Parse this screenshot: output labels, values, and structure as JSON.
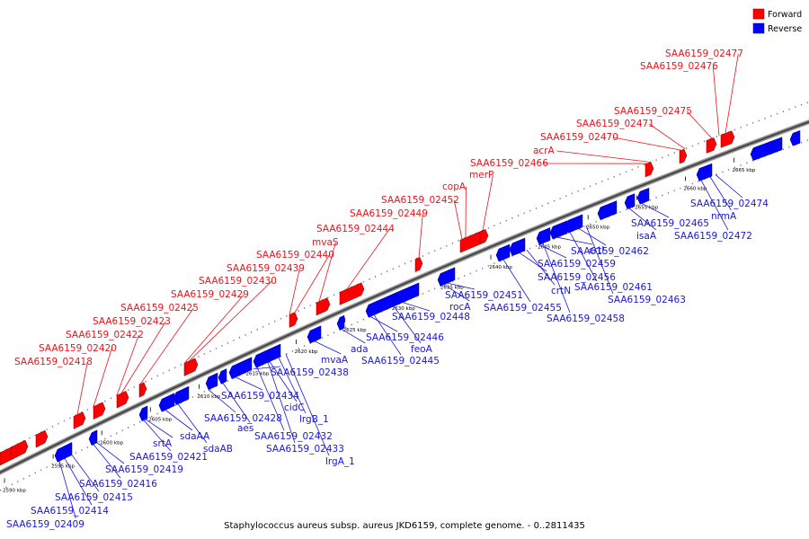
{
  "legend": {
    "forward_label": "Forward",
    "reverse_label": "Reverse",
    "forward_color": "#ff0000",
    "reverse_color": "#0000ff"
  },
  "caption": "Staphylococcus aureus subsp. aureus JKD6159, complete genome. - 0..2811435",
  "scale_kbp": [
    2590,
    2595,
    2600,
    2605,
    2610,
    2615,
    2620,
    2625,
    2630,
    2635,
    2640,
    2645,
    2650,
    2655,
    2660,
    2665
  ],
  "forward_genes": [
    "SAA6159_02418",
    "SAA6159_02420",
    "SAA6159_02422",
    "SAA6159_02423",
    "SAA6159_02425",
    "SAA6159_02429",
    "SAA6159_02430",
    "SAA6159_02439",
    "SAA6159_02440",
    "mvaS",
    "SAA6159_02444",
    "SAA6159_02449",
    "SAA6159_02452",
    "copA",
    "merP",
    "SAA6159_02466",
    "acrA",
    "SAA6159_02470",
    "SAA6159_02471",
    "SAA6159_02475",
    "SAA6159_02476",
    "SAA6159_02477"
  ],
  "reverse_genes": [
    "SAA6159_02409",
    "SAA6159_02414",
    "SAA6159_02415",
    "SAA6159_02416",
    "SAA6159_02419",
    "SAA6159_02421",
    "srtA",
    "sdaAA",
    "sdaAB",
    "SAA6159_02428",
    "aes",
    "SAA6159_02434",
    "SAA6159_02432",
    "SAA6159_02433",
    "cidC",
    "lrgB_1",
    "lrgA_1",
    "SAA6159_02438",
    "mvaA",
    "ada",
    "SAA6159_02446",
    "SAA6159_02445",
    "feoA",
    "SAA6159_02448",
    "rocA",
    "SAA6159_02451",
    "SAA6159_02455",
    "SAA6159_02456",
    "crtN",
    "SAA6159_02458",
    "SAA6159_02459",
    "crtI",
    "SAA6159_02461",
    "SAA6159_02462",
    "SAA6159_02463",
    "isaA",
    "SAA6159_02465",
    "SAA6159_02472",
    "nrmA",
    "SAA6159_02474"
  ]
}
